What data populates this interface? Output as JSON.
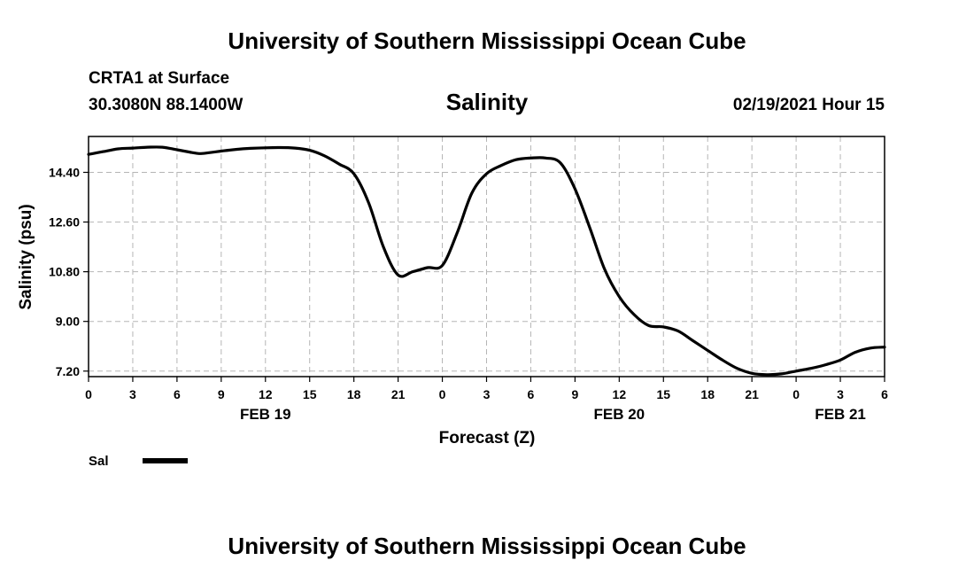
{
  "header": {
    "title": "University of Southern Mississippi Ocean Cube",
    "station": "CRTA1 at Surface",
    "coords": "30.3080N 88.1400W",
    "datetime": "02/19/2021 Hour 15"
  },
  "footer": {
    "title": "University of Southern Mississippi Ocean Cube"
  },
  "chart_data": {
    "type": "line",
    "title": "Salinity",
    "xlabel": "Forecast (Z)",
    "ylabel": "Salinity (psu)",
    "xlim": [
      0,
      54
    ],
    "ylim": [
      7.0,
      15.7
    ],
    "grid": true,
    "y_ticks": [
      7.2,
      9.0,
      10.8,
      12.6,
      14.4
    ],
    "y_tick_labels": [
      "7.20",
      "9.00",
      "10.80",
      "12.60",
      "14.40"
    ],
    "x_ticks": [
      0,
      3,
      6,
      9,
      12,
      15,
      18,
      21,
      24,
      27,
      30,
      33,
      36,
      39,
      42,
      45,
      48,
      51,
      54
    ],
    "x_tick_labels": [
      "0",
      "3",
      "6",
      "9",
      "12",
      "15",
      "18",
      "21",
      "0",
      "3",
      "6",
      "9",
      "12",
      "15",
      "18",
      "21",
      "0",
      "3",
      "6"
    ],
    "date_labels": [
      {
        "x": 12,
        "label": "FEB 19"
      },
      {
        "x": 36,
        "label": "FEB 20"
      },
      {
        "x": 51,
        "label": "FEB 21"
      }
    ],
    "series": [
      {
        "name": "Sal",
        "color": "#000000",
        "x": [
          0,
          1,
          2,
          3,
          4,
          5,
          6,
          7,
          7.5,
          8,
          9,
          10,
          11,
          12,
          13,
          14,
          15,
          16,
          17,
          18,
          19,
          20,
          21,
          22,
          23,
          24,
          25,
          26,
          27,
          28,
          29,
          30,
          31,
          32,
          33,
          34,
          35,
          36,
          37,
          38,
          39,
          40,
          41,
          42,
          43,
          44,
          45,
          46,
          47,
          48,
          49,
          50,
          51,
          52,
          53,
          54
        ],
        "values": [
          15.05,
          15.15,
          15.25,
          15.28,
          15.31,
          15.31,
          15.22,
          15.12,
          15.08,
          15.1,
          15.17,
          15.23,
          15.27,
          15.29,
          15.3,
          15.28,
          15.2,
          15.0,
          14.7,
          14.35,
          13.3,
          11.7,
          10.68,
          10.8,
          10.95,
          11.03,
          12.2,
          13.65,
          14.35,
          14.65,
          14.86,
          14.92,
          14.92,
          14.75,
          13.8,
          12.4,
          10.9,
          9.9,
          9.25,
          8.85,
          8.8,
          8.65,
          8.3,
          7.95,
          7.6,
          7.3,
          7.12,
          7.07,
          7.1,
          7.2,
          7.3,
          7.43,
          7.6,
          7.88,
          8.03,
          8.07
        ]
      }
    ]
  }
}
